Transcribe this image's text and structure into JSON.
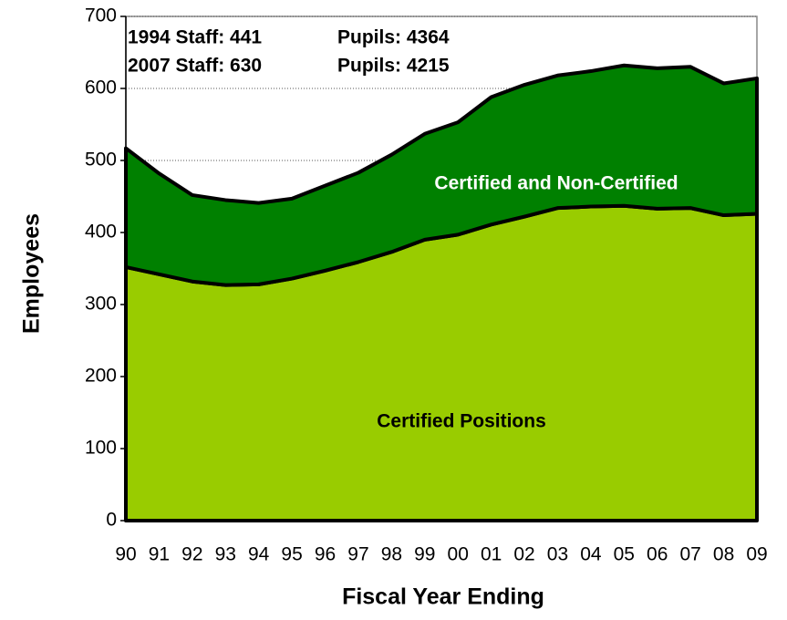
{
  "chart_data": {
    "type": "stacked_area",
    "categories": [
      "90",
      "91",
      "92",
      "93",
      "94",
      "95",
      "96",
      "97",
      "98",
      "99",
      "00",
      "01",
      "02",
      "03",
      "04",
      "05",
      "06",
      "07",
      "08",
      "09"
    ],
    "series": [
      {
        "name": "Certified Positions",
        "color": "#99cc00",
        "values": [
          352,
          342,
          332,
          327,
          328,
          336,
          347,
          359,
          373,
          390,
          397,
          411,
          422,
          434,
          436,
          437,
          433,
          434,
          424,
          426
        ]
      },
      {
        "name": "Certified and Non-Certified",
        "color": "#008000",
        "values": [
          165,
          140,
          120,
          118,
          113,
          111,
          118,
          124,
          135,
          147,
          156,
          177,
          183,
          184,
          188,
          195,
          195,
          196,
          183,
          188
        ]
      }
    ],
    "annotations": [
      [
        "1994 Staff: 441",
        "Pupils: 4364"
      ],
      [
        "2007 Staff: 630",
        "Pupils: 4215"
      ]
    ],
    "xlabel": "Fiscal Year Ending",
    "ylabel": "Employees",
    "ylim": [
      0,
      700
    ],
    "yticks": [
      0,
      100,
      200,
      300,
      400,
      500,
      600,
      700
    ],
    "grid": true
  }
}
